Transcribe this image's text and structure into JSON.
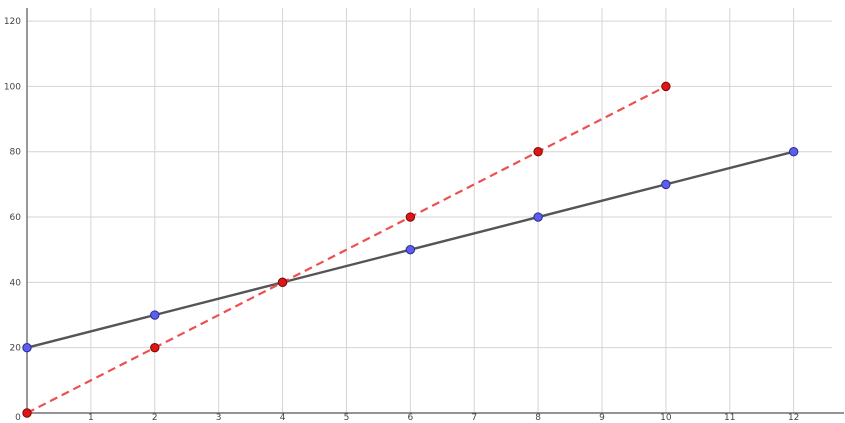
{
  "chart_data": {
    "type": "line",
    "title": "",
    "xlabel": "",
    "ylabel": "",
    "xlim": [
      0,
      12.6
    ],
    "ylim": [
      0,
      124
    ],
    "grid": true,
    "x_ticks": [
      "0",
      "1",
      "2",
      "3",
      "4",
      "5",
      "6",
      "7",
      "8",
      "9",
      "10",
      "11",
      "12"
    ],
    "y_ticks": [
      "20",
      "40",
      "60",
      "80",
      "100",
      "120"
    ],
    "series": [
      {
        "x": [
          0,
          2,
          4,
          6,
          8,
          10,
          12
        ],
        "y": [
          20,
          30,
          40,
          50,
          60,
          70,
          80
        ],
        "line_style": "solid",
        "line_color": "#555555",
        "marker_color": "#5b5ef0",
        "marker_edge": "#2a2a8a"
      },
      {
        "x": [
          0,
          2,
          4,
          6,
          8,
          10
        ],
        "y": [
          0,
          20,
          40,
          60,
          80,
          100
        ],
        "line_style": "dashed",
        "line_color": "#ee5050",
        "marker_color": "#e01515",
        "marker_edge": "#7a0a0a"
      }
    ]
  }
}
